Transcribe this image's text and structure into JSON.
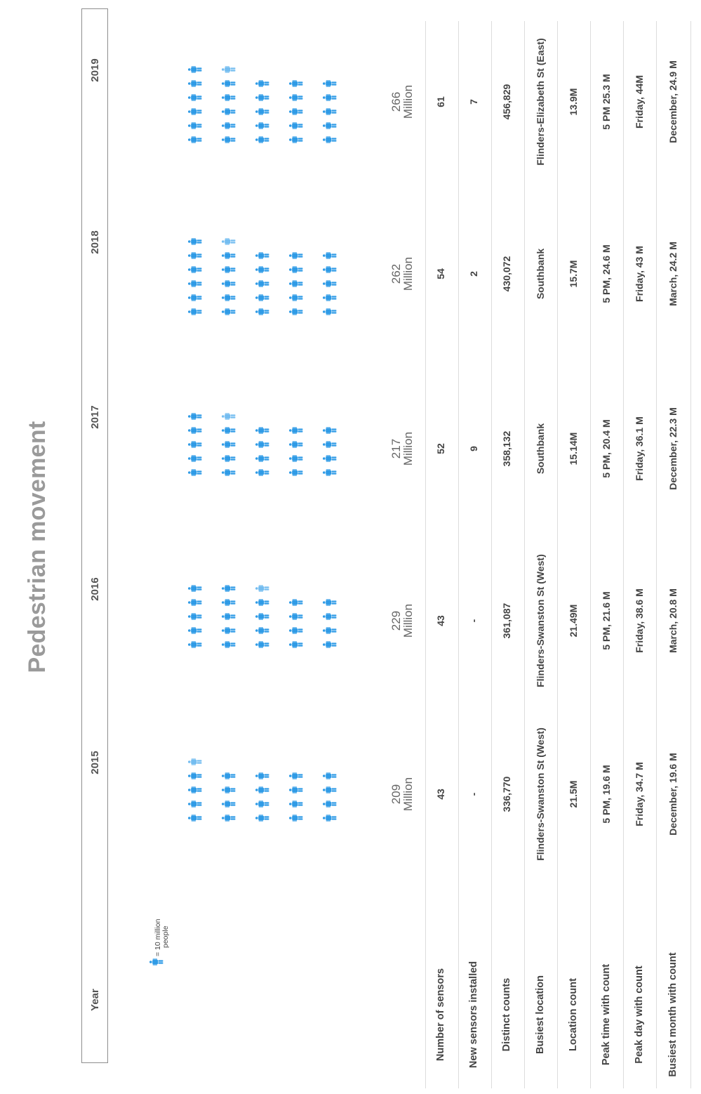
{
  "title": "Pedestrian movement",
  "legend": {
    "line1": "= 10 million",
    "line2": "people"
  },
  "row_labels": {
    "year": "Year",
    "num_sensors": "Number of sensors",
    "new_sensors": "New sensors installed",
    "distinct_counts": "Distinct counts",
    "busiest_location": "Busiest location",
    "location_count": "Location count",
    "peak_time": "Peak time with count",
    "peak_day": "Peak day with count",
    "busiest_month": "Busiest month with count"
  },
  "colors": {
    "icon": "#2f9be6",
    "icon_partial": "#74bdf0",
    "title": "#9a9a9a"
  },
  "icon_name": "person-icon",
  "years": [
    {
      "year": "2015",
      "total_line1": "209",
      "total_line2": "Million",
      "num_sensors": "43",
      "new_sensors": "-",
      "distinct_counts": "336,770",
      "busiest_location": "Flinders-Swanston St (West)",
      "location_count": "21.5M",
      "peak_time": "5 PM, 19.6 M",
      "peak_day": "Friday, 34.7 M",
      "busiest_month": "December, 19.6 M"
    },
    {
      "year": "2016",
      "total_line1": "229",
      "total_line2": "Million",
      "num_sensors": "43",
      "new_sensors": "-",
      "distinct_counts": "361,087",
      "busiest_location": "Flinders-Swanston St (West)",
      "location_count": "21.49M",
      "peak_time": "5 PM, 21.6 M",
      "peak_day": "Friday, 38.6 M",
      "busiest_month": "March, 20.8 M"
    },
    {
      "year": "2017",
      "total_line1": "217",
      "total_line2": "Million",
      "num_sensors": "52",
      "new_sensors": "9",
      "distinct_counts": "358,132",
      "busiest_location": "Southbank",
      "location_count": "15.14M",
      "peak_time": "5 PM,  20.4 M",
      "peak_day": "Friday, 36.1 M",
      "busiest_month": "December, 22.3 M"
    },
    {
      "year": "2018",
      "total_line1": "262",
      "total_line2": "Million",
      "num_sensors": "54",
      "new_sensors": "2",
      "distinct_counts": "430,072",
      "busiest_location": "Southbank",
      "location_count": "15.7M",
      "peak_time": "5 PM, 24.6 M",
      "peak_day": "Friday, 43 M",
      "busiest_month": "March, 24.2 M"
    },
    {
      "year": "2019",
      "total_line1": "266",
      "total_line2": "Million",
      "num_sensors": "61",
      "new_sensors": "7",
      "distinct_counts": "456,829",
      "busiest_location": "Flinders-Elizabeth St (East)",
      "location_count": "13.9M",
      "peak_time": "5 PM 25.3 M",
      "peak_day": "Friday, 44M",
      "busiest_month": "December, 24.9 M"
    }
  ],
  "chart_data": {
    "type": "pictogram",
    "title": "Pedestrian movement",
    "unit": "= 10 million people",
    "categories": [
      "2015",
      "2016",
      "2017",
      "2018",
      "2019"
    ],
    "values": [
      209,
      229,
      217,
      262,
      266
    ],
    "value_unit": "Million"
  }
}
